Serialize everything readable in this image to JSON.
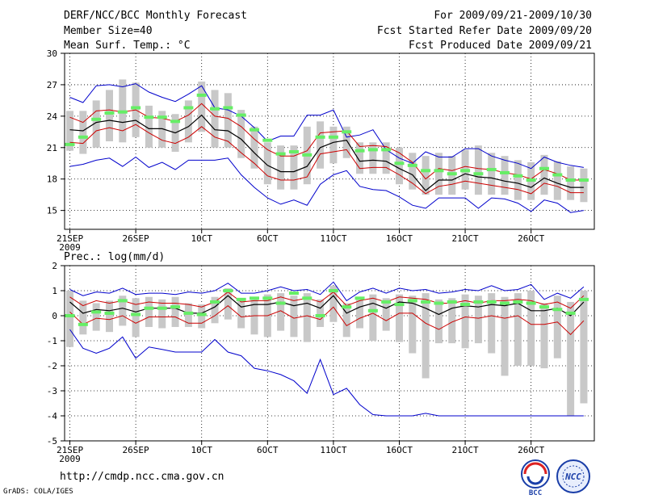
{
  "header": {
    "title": "DERF/NCC/BCC Monthly Forecast",
    "member_size": "Member Size=40",
    "variable": "Mean Surf. Temp.: °C",
    "period": "For 2009/09/21-2009/10/30",
    "fcst_started": "Fcst Started Refer Date 2009/09/20",
    "fcst_produced": "Fcst Produced Date 2009/09/21"
  },
  "footer": {
    "url": "http://cmdp.ncc.cma.gov.cn",
    "grads": "GrADS: COLA/IGES",
    "logo1_text": "BCC",
    "logo2_text": "NCC"
  },
  "colors": {
    "envelope": "#0000cc",
    "spread": "#cc0000",
    "mean": "#000000",
    "bar": "#c8c8c8",
    "member_mark": "#66ee66",
    "grid": "#000000"
  },
  "chart_data": [
    {
      "type": "line",
      "title": "Mean Surf. Temp.: °C",
      "ylabel": "°C",
      "ylim": [
        13.2,
        30
      ],
      "yticks": [
        15,
        18,
        21,
        24,
        27,
        30
      ],
      "xticks": [
        {
          "day": 1,
          "label": "21SEP",
          "sub": "2009"
        },
        {
          "day": 6,
          "label": "26SEP"
        },
        {
          "day": 11,
          "label": "10CT"
        },
        {
          "day": 16,
          "label": "6OCT"
        },
        {
          "day": 21,
          "label": "11OCT"
        },
        {
          "day": 26,
          "label": "16OCT"
        },
        {
          "day": 31,
          "label": "21OCT"
        },
        {
          "day": 36,
          "label": "26OCT"
        }
      ],
      "xlim": [
        0.6,
        40.8
      ],
      "x": [
        1,
        2,
        3,
        4,
        5,
        6,
        7,
        8,
        9,
        10,
        11,
        12,
        13,
        14,
        15,
        16,
        17,
        18,
        19,
        20,
        21,
        22,
        23,
        24,
        25,
        26,
        27,
        28,
        29,
        30,
        31,
        32,
        33,
        34,
        35,
        36,
        37,
        38,
        39,
        40
      ],
      "series": [
        {
          "name": "max",
          "color": "envelope",
          "values": [
            25.8,
            25.3,
            26.9,
            27.0,
            26.8,
            27.1,
            26.3,
            25.8,
            25.4,
            26.1,
            26.9,
            24.8,
            24.6,
            24.0,
            22.9,
            21.6,
            22.1,
            22.1,
            24.1,
            24.1,
            24.6,
            22.0,
            22.2,
            22.7,
            20.8,
            20.0,
            19.5,
            20.6,
            20.1,
            20.1,
            20.9,
            20.9,
            20.2,
            19.8,
            19.5,
            19.0,
            20.1,
            19.6,
            19.3,
            19.1
          ]
        },
        {
          "name": "upper",
          "color": "spread",
          "values": [
            23.9,
            23.4,
            24.5,
            24.6,
            24.4,
            24.6,
            23.9,
            23.8,
            23.5,
            24.1,
            25.2,
            24.0,
            23.8,
            23.0,
            21.8,
            20.8,
            20.2,
            20.2,
            20.7,
            22.4,
            22.5,
            22.6,
            21.1,
            21.2,
            21.1,
            20.5,
            19.6,
            18.0,
            19.0,
            18.8,
            19.2,
            19.0,
            18.9,
            18.6,
            18.4,
            18.0,
            18.9,
            18.5,
            17.9,
            17.9
          ]
        },
        {
          "name": "mean",
          "color": "mean",
          "values": [
            22.7,
            22.6,
            23.4,
            23.6,
            23.4,
            23.6,
            22.8,
            22.8,
            22.4,
            23.0,
            24.1,
            22.7,
            22.6,
            21.8,
            20.5,
            19.3,
            18.7,
            18.7,
            19.2,
            21.0,
            21.5,
            21.7,
            19.7,
            19.8,
            19.7,
            19.0,
            18.4,
            16.9,
            17.9,
            17.9,
            18.5,
            18.2,
            18.1,
            17.8,
            17.6,
            17.2,
            18.1,
            17.6,
            17.2,
            17.2
          ]
        },
        {
          "name": "lower",
          "color": "spread",
          "values": [
            21.5,
            21.4,
            22.6,
            22.9,
            22.6,
            23.2,
            22.4,
            21.7,
            21.4,
            22.0,
            23.0,
            22.0,
            21.6,
            20.5,
            19.5,
            18.3,
            17.9,
            17.9,
            18.2,
            20.4,
            20.6,
            20.8,
            19.0,
            19.1,
            19.1,
            18.4,
            17.6,
            16.6,
            17.3,
            17.5,
            17.8,
            17.6,
            17.4,
            17.2,
            17.0,
            16.6,
            17.6,
            17.3,
            16.7,
            16.7
          ]
        },
        {
          "name": "min",
          "color": "envelope",
          "values": [
            19.2,
            19.4,
            19.8,
            20.0,
            19.2,
            20.1,
            19.1,
            19.6,
            18.9,
            19.8,
            19.8,
            19.8,
            20.0,
            18.4,
            17.2,
            16.2,
            15.6,
            16.0,
            15.5,
            17.5,
            18.4,
            18.8,
            17.3,
            17.0,
            16.9,
            16.3,
            15.5,
            15.2,
            16.2,
            16.2,
            16.2,
            15.2,
            16.2,
            16.1,
            15.7,
            14.9,
            16.0,
            15.7,
            14.8,
            15.0
          ]
        }
      ],
      "bars": {
        "lo": [
          20.7,
          20.4,
          21.0,
          21.6,
          21.5,
          22.0,
          21.0,
          21.0,
          20.6,
          21.5,
          22.5,
          21.0,
          21.0,
          20.0,
          19.0,
          17.5,
          17.0,
          17.0,
          17.5,
          19.0,
          19.5,
          20.0,
          18.5,
          18.5,
          18.5,
          17.5,
          17.0,
          16.5,
          16.5,
          16.5,
          17.0,
          16.5,
          16.5,
          16.5,
          16.0,
          16.0,
          16.5,
          16.0,
          16.0,
          15.8
        ],
        "hi": [
          24.5,
          24.5,
          25.5,
          26.5,
          27.5,
          27.2,
          25.0,
          24.5,
          24.2,
          25.5,
          27.3,
          26.5,
          26.2,
          24.6,
          23.0,
          21.5,
          21.2,
          21.2,
          23.0,
          23.5,
          23.0,
          23.0,
          21.5,
          21.5,
          21.5,
          21.0,
          20.5,
          20.2,
          20.5,
          20.2,
          20.8,
          21.2,
          20.5,
          20.2,
          19.8,
          19.6,
          20.3,
          19.7,
          19.2,
          19.0
        ]
      },
      "marks": [
        21.3,
        22.0,
        23.7,
        24.3,
        24.4,
        24.8,
        23.9,
        23.9,
        23.5,
        24.8,
        26.0,
        24.7,
        24.8,
        24.1,
        22.7,
        21.7,
        20.4,
        20.6,
        20.3,
        22.0,
        22.0,
        22.5,
        20.7,
        20.8,
        20.8,
        19.5,
        19.3,
        18.8,
        18.8,
        18.5,
        18.8,
        18.5,
        18.9,
        18.6,
        18.3,
        17.9,
        19.0,
        18.4,
        17.9,
        17.9
      ]
    },
    {
      "type": "line",
      "title": "Prec.: log(mm/d)",
      "ylabel": "log(mm/d)",
      "ylim": [
        -5,
        2
      ],
      "yticks": [
        -5,
        -4,
        -3,
        -2,
        -1,
        0,
        1,
        2
      ],
      "xticks": [
        {
          "day": 1,
          "label": "21SEP",
          "sub": "2009"
        },
        {
          "day": 6,
          "label": "26SEP"
        },
        {
          "day": 11,
          "label": "10CT"
        },
        {
          "day": 16,
          "label": "6OCT"
        },
        {
          "day": 21,
          "label": "11OCT"
        },
        {
          "day": 26,
          "label": "16OCT"
        },
        {
          "day": 31,
          "label": "21OCT"
        },
        {
          "day": 36,
          "label": "26OCT"
        }
      ],
      "xlim": [
        0.6,
        40.8
      ],
      "x": [
        1,
        2,
        3,
        4,
        5,
        6,
        7,
        8,
        9,
        10,
        11,
        12,
        13,
        14,
        15,
        16,
        17,
        18,
        19,
        20,
        21,
        22,
        23,
        24,
        25,
        26,
        27,
        28,
        29,
        30,
        31,
        32,
        33,
        34,
        35,
        36,
        37,
        38,
        39,
        40
      ],
      "series": [
        {
          "name": "max",
          "color": "envelope",
          "values": [
            1.05,
            0.8,
            0.95,
            0.9,
            1.1,
            0.85,
            0.9,
            0.9,
            0.85,
            0.95,
            0.9,
            1.0,
            1.3,
            0.9,
            0.9,
            1.0,
            1.15,
            1.0,
            1.05,
            0.85,
            1.35,
            0.6,
            0.95,
            1.1,
            0.9,
            1.1,
            1.0,
            1.05,
            0.9,
            0.95,
            1.05,
            1.0,
            1.2,
            1.0,
            1.05,
            1.25,
            0.65,
            0.9,
            0.7,
            1.15
          ]
        },
        {
          "name": "upper",
          "color": "spread",
          "values": [
            0.75,
            0.4,
            0.6,
            0.5,
            0.6,
            0.45,
            0.55,
            0.5,
            0.5,
            0.45,
            0.35,
            0.55,
            0.95,
            0.55,
            0.6,
            0.6,
            0.75,
            0.6,
            0.7,
            0.55,
            0.95,
            0.4,
            0.6,
            0.7,
            0.55,
            0.75,
            0.7,
            0.65,
            0.5,
            0.5,
            0.6,
            0.5,
            0.6,
            0.6,
            0.65,
            0.6,
            0.45,
            0.55,
            0.3,
            0.8
          ]
        },
        {
          "name": "mean",
          "color": "mean",
          "values": [
            0.55,
            0.1,
            0.25,
            0.2,
            0.3,
            0.15,
            0.3,
            0.3,
            0.3,
            0.1,
            0.1,
            0.35,
            0.8,
            0.35,
            0.45,
            0.45,
            0.55,
            0.4,
            0.5,
            0.3,
            0.8,
            0.1,
            0.35,
            0.5,
            0.3,
            0.55,
            0.5,
            0.3,
            0.05,
            0.3,
            0.4,
            0.35,
            0.45,
            0.4,
            0.5,
            0.2,
            0.2,
            0.3,
            0.0,
            0.55
          ]
        },
        {
          "name": "lower",
          "color": "spread",
          "values": [
            0.15,
            -0.35,
            -0.1,
            -0.15,
            0.0,
            -0.3,
            -0.05,
            -0.05,
            -0.05,
            -0.3,
            -0.3,
            0.0,
            0.4,
            -0.05,
            0.0,
            0.0,
            0.2,
            -0.1,
            0.0,
            -0.15,
            0.35,
            -0.4,
            -0.1,
            0.1,
            -0.2,
            0.1,
            0.1,
            -0.3,
            -0.55,
            -0.25,
            -0.05,
            -0.1,
            0.0,
            -0.1,
            0.0,
            -0.35,
            -0.35,
            -0.25,
            -0.75,
            -0.2
          ]
        },
        {
          "name": "min",
          "color": "envelope",
          "values": [
            -0.55,
            -1.3,
            -1.5,
            -1.3,
            -0.85,
            -1.7,
            -1.25,
            -1.35,
            -1.45,
            -1.45,
            -1.45,
            -0.95,
            -1.45,
            -1.6,
            -2.1,
            -2.2,
            -2.35,
            -2.6,
            -3.1,
            -1.75,
            -3.15,
            -2.9,
            -3.55,
            -3.95,
            -4.0,
            -4.0,
            -4.0,
            -3.9,
            -4.0,
            -4.0,
            -4.0,
            -4.0,
            -4.0,
            -4.0,
            -4.0,
            -4.0,
            -4.0,
            -4.0,
            -4.0,
            -4.0
          ]
        }
      ],
      "bars": {
        "lo": [
          -1.25,
          -0.75,
          -0.6,
          -0.65,
          -0.4,
          -0.85,
          -0.45,
          -0.5,
          -0.45,
          -0.45,
          -0.5,
          -0.3,
          -0.15,
          -0.5,
          -0.75,
          -0.85,
          -0.6,
          -0.85,
          -1.05,
          -0.45,
          -0.25,
          -0.85,
          -0.5,
          -1.0,
          -0.6,
          -1.05,
          -1.5,
          -2.5,
          -1.1,
          -1.1,
          -1.3,
          -1.1,
          -1.5,
          -2.4,
          -2.0,
          -2.0,
          -2.1,
          -1.7,
          -4.0,
          -3.5
        ],
        "hi": [
          1.0,
          0.6,
          0.5,
          0.6,
          0.8,
          0.7,
          0.75,
          0.65,
          0.75,
          0.5,
          0.45,
          0.75,
          1.1,
          0.65,
          0.75,
          0.85,
          0.9,
          0.8,
          0.9,
          0.65,
          1.2,
          0.5,
          0.75,
          0.85,
          0.7,
          0.85,
          0.8,
          0.9,
          0.65,
          0.7,
          0.85,
          0.8,
          0.9,
          0.75,
          0.9,
          1.0,
          0.5,
          0.8,
          0.55,
          1.0
        ]
      },
      "marks": [
        0.0,
        -0.35,
        0.15,
        0.1,
        0.6,
        0.05,
        0.3,
        0.3,
        0.35,
        0.1,
        0.05,
        0.55,
        1.0,
        0.65,
        0.7,
        0.7,
        0.5,
        0.9,
        0.7,
        0.0,
        1.0,
        0.35,
        0.7,
        0.2,
        0.55,
        0.45,
        0.6,
        0.55,
        0.5,
        0.55,
        0.45,
        0.55,
        0.55,
        0.5,
        0.55,
        0.5,
        0.35,
        0.25,
        0.1,
        0.65
      ]
    }
  ]
}
